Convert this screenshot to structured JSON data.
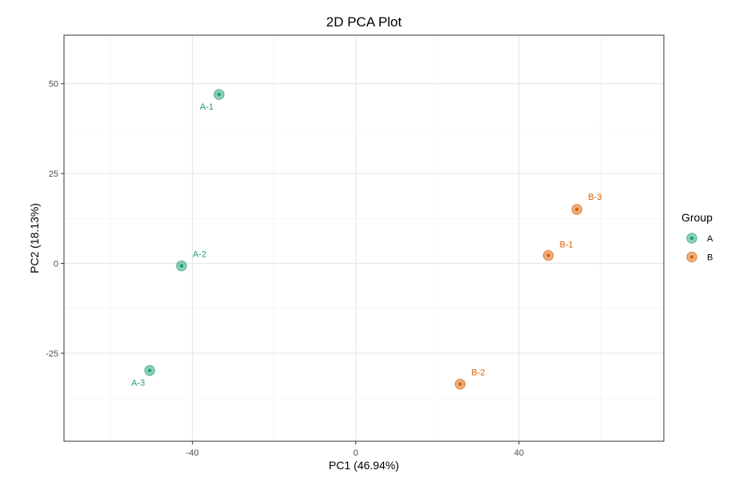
{
  "chart_data": {
    "type": "scatter",
    "title": "2D PCA Plot",
    "xlabel": "PC1 (46.94%)",
    "ylabel": "PC2 (18.13%)",
    "xlim": [
      -71.5,
      75.5
    ],
    "ylim": [
      -49.5,
      63.5
    ],
    "xticks": [
      -40,
      0,
      40
    ],
    "xtick_labels": [
      "-40",
      "0",
      "40"
    ],
    "yticks": [
      -25,
      0,
      25,
      50
    ],
    "ytick_labels": [
      "-25",
      "0",
      "25",
      "50"
    ],
    "x_minor_gridlines": [
      -60,
      -20,
      20,
      60
    ],
    "y_minor_gridlines": [
      -37.5,
      -12.5,
      12.5,
      37.5
    ],
    "grid": true,
    "legend": {
      "title": "Group",
      "placement": "right",
      "entries": [
        {
          "label": "A",
          "color": "#1b9e77"
        },
        {
          "label": "B",
          "color": "#d95f02"
        }
      ]
    },
    "series": [
      {
        "name": "A",
        "color": "#1b9e77",
        "points": [
          {
            "label": "A-1",
            "x": -33.5,
            "y": 47.0
          },
          {
            "label": "A-2",
            "x": -42.7,
            "y": -0.7
          },
          {
            "label": "A-3",
            "x": -50.5,
            "y": -29.8
          }
        ]
      },
      {
        "name": "B",
        "color": "#d95f02",
        "points": [
          {
            "label": "B-1",
            "x": 47.2,
            "y": 2.2
          },
          {
            "label": "B-2",
            "x": 25.6,
            "y": -33.6
          },
          {
            "label": "B-3",
            "x": 54.2,
            "y": 15.0
          }
        ]
      }
    ]
  }
}
